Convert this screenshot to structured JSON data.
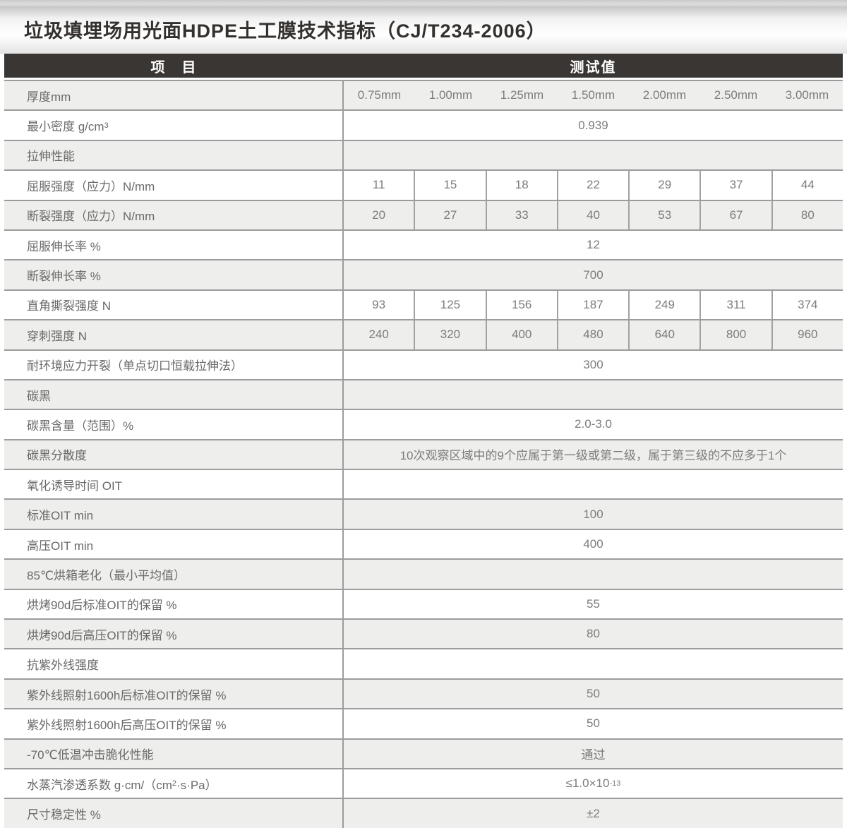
{
  "title": "垃圾填埋场用光面HDPE土工膜技术指标（CJ/T234-2006）",
  "colors": {
    "header_bar": "#3a3633",
    "row_alt": "#eeeeec",
    "border": "#9c9c9c",
    "title_text": "#34302d",
    "body_text": "#6e6e6e"
  },
  "table": {
    "header": {
      "item": "项　目",
      "value": "测试值"
    },
    "rows": [
      {
        "type": "cols-plain",
        "label": "厚度mm",
        "values": [
          "0.75mm",
          "1.00mm",
          "1.25mm",
          "1.50mm",
          "2.00mm",
          "2.50mm",
          "3.00mm"
        ]
      },
      {
        "type": "span",
        "label_segs": [
          {
            "text": "最小密度 g/cm"
          },
          {
            "sup": "3"
          }
        ],
        "value": "0.939"
      },
      {
        "type": "empty",
        "label": "拉伸性能"
      },
      {
        "type": "cols",
        "label": "屈服强度（应力）N/mm",
        "values": [
          "11",
          "15",
          "18",
          "22",
          "29",
          "37",
          "44"
        ]
      },
      {
        "type": "cols",
        "label": "断裂强度（应力）N/mm",
        "values": [
          "20",
          "27",
          "33",
          "40",
          "53",
          "67",
          "80"
        ]
      },
      {
        "type": "span",
        "label": "屈服伸长率 %",
        "value": "12"
      },
      {
        "type": "span",
        "label": "断裂伸长率 %",
        "value": "700"
      },
      {
        "type": "cols",
        "label": "直角撕裂强度 N",
        "values": [
          "93",
          "125",
          "156",
          "187",
          "249",
          "311",
          "374"
        ]
      },
      {
        "type": "cols",
        "label": "穿刺强度 N",
        "values": [
          "240",
          "320",
          "400",
          "480",
          "640",
          "800",
          "960"
        ]
      },
      {
        "type": "span",
        "label": "耐环境应力开裂（单点切口恒载拉伸法）",
        "value": "300"
      },
      {
        "type": "empty",
        "label": "碳黑"
      },
      {
        "type": "span",
        "label": "碳黑含量（范围）%",
        "value": "2.0-3.0"
      },
      {
        "type": "span",
        "label": "碳黑分散度",
        "value": "10次观察区域中的9个应属于第一级或第二级，属于第三级的不应多于1个"
      },
      {
        "type": "empty",
        "label": "氧化诱导时间 OIT"
      },
      {
        "type": "span",
        "label": "标准OIT min",
        "value": "100"
      },
      {
        "type": "span",
        "label": "高压OIT min",
        "value": "400"
      },
      {
        "type": "empty",
        "label": "85℃烘箱老化（最小平均值）"
      },
      {
        "type": "span",
        "label": "烘烤90d后标准OIT的保留 %",
        "value": "55"
      },
      {
        "type": "span",
        "label": "烘烤90d后高压OIT的保留 %",
        "value": "80"
      },
      {
        "type": "empty",
        "label": "抗紫外线强度"
      },
      {
        "type": "span",
        "label": "紫外线照射1600h后标准OIT的保留 %",
        "value": "50"
      },
      {
        "type": "span",
        "label": "紫外线照射1600h后高压OIT的保留 %",
        "value": "50"
      },
      {
        "type": "span",
        "label": "-70℃低温冲击脆化性能",
        "value": "通过"
      },
      {
        "type": "span",
        "label_segs": [
          {
            "text": "水蒸汽渗透系数 g·cm/（cm"
          },
          {
            "sup": "2"
          },
          {
            "text": "·s·Pa）"
          }
        ],
        "value_segs": [
          {
            "text": "≤1.0×10"
          },
          {
            "sup": "-13"
          }
        ]
      },
      {
        "type": "span",
        "label": "尺寸稳定性 %",
        "value": "±2"
      }
    ]
  }
}
